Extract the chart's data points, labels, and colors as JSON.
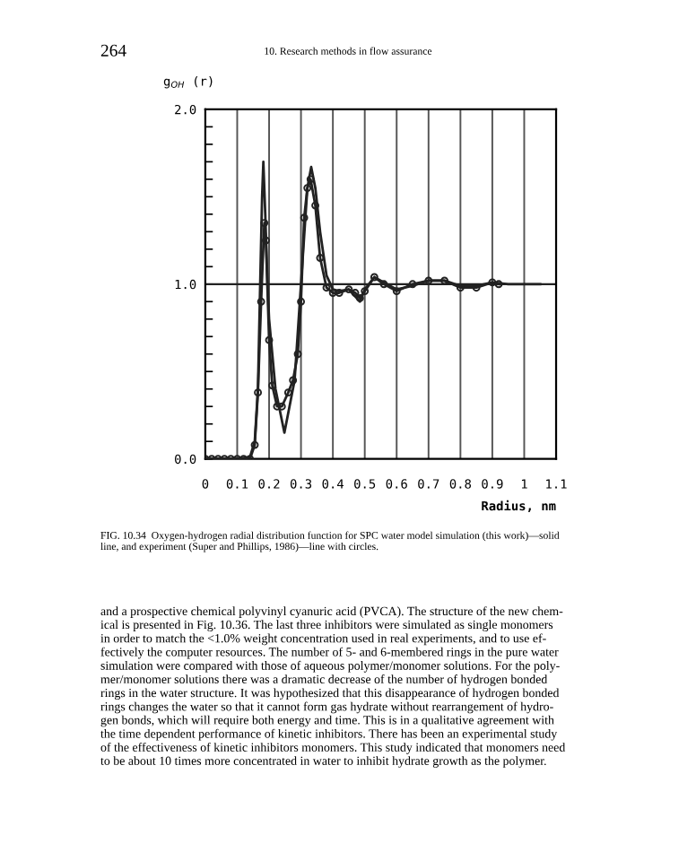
{
  "chart_data": {
    "type": "line",
    "annotations": [
      "264",
      "10. Research methods in flow assurance",
      "FIG. 10.34  Oxygen-hydrogen radial distribution function for SPC water model simulation (this work)—solid\nline, and experiment (Super and Phillips, 1986)—line with circles.",
      "and a prospective chemical polyvinyl cyanuric acid (PVCA). The structure of the new chem-\nical is presented in Fig. 10.36. The last three inhibitors were simulated as single monomers\nin order to match the <1.0% weight concentration used in real experiments, and to use ef-\nfectively the computer resources. The number of 5- and 6-membered rings in the pure water\nsimulation were compared with those of aqueous polymer/monomer solutions. For the poly-\nmer/monomer solutions there was a dramatic decrease of the number of hydrogen bonded\nrings in the water structure. It was hypothesized that this disappearance of hydrogen bonded\nrings changes the water so that it cannot form gas hydrate without rearrangement of hydro-\ngen bonds, which will require both energy and time. This is in a qualitative agreement with\nthe time dependent performance of kinetic inhibitors. There has been an experimental study\nof the effectiveness of kinetic inhibitors monomers. This study indicated that monomers need\nto be about 10 times more concentrated in water to inhibit hydrate growth as the polymer."
    ],
    "xlabel": "Radius, nm",
    "ylabel": "g$_{OH}$ (r)",
    "series": [
      {
        "color": "#222222",
        "marker": "none",
        "x": [
          0,
          0.1,
          0.14,
          0.155,
          0.165,
          0.172,
          0.178,
          0.182,
          0.188,
          0.195,
          0.2,
          0.22,
          0.248,
          0.28,
          0.3,
          0.32,
          0.332,
          0.345,
          0.36,
          0.38,
          0.4,
          0.42,
          0.45,
          0.47,
          0.485,
          0.5,
          0.53,
          0.56,
          0.6,
          0.65,
          0.7,
          0.75,
          0.8,
          0.85,
          0.9,
          0.95,
          1.0,
          1.05
        ],
        "values": [
          0,
          0,
          0.01,
          0.1,
          0.4,
          1.0,
          1.5,
          1.7,
          1.4,
          1.0,
          0.8,
          0.4,
          0.15,
          0.45,
          1.0,
          1.55,
          1.67,
          1.55,
          1.3,
          1.05,
          0.97,
          0.96,
          0.97,
          0.93,
          0.9,
          0.97,
          1.04,
          1.01,
          0.97,
          0.99,
          1.02,
          1.02,
          0.99,
          0.99,
          1.01,
          1.0,
          1.0,
          1.0
        ]
      },
      {
        "color": "#222222",
        "marker": "circle",
        "x": [
          0,
          0.02,
          0.04,
          0.06,
          0.08,
          0.1,
          0.12,
          0.14,
          0.155,
          0.165,
          0.175,
          0.185,
          0.19,
          0.2,
          0.21,
          0.225,
          0.24,
          0.26,
          0.275,
          0.29,
          0.3,
          0.31,
          0.32,
          0.33,
          0.345,
          0.36,
          0.38,
          0.4,
          0.42,
          0.45,
          0.47,
          0.485,
          0.5,
          0.53,
          0.56,
          0.6,
          0.65,
          0.7,
          0.75,
          0.8,
          0.85,
          0.9,
          0.92
        ],
        "values": [
          0,
          0,
          0,
          0,
          0,
          0,
          0,
          0,
          0.08,
          0.38,
          0.9,
          1.35,
          1.25,
          0.68,
          0.42,
          0.3,
          0.3,
          0.38,
          0.45,
          0.6,
          0.9,
          1.38,
          1.55,
          1.6,
          1.45,
          1.15,
          0.98,
          0.95,
          0.95,
          0.97,
          0.95,
          0.92,
          0.96,
          1.04,
          1.0,
          0.96,
          1.0,
          1.02,
          1.02,
          0.98,
          0.98,
          1.01,
          1.0
        ]
      }
    ],
    "xlim": [
      0,
      1.1
    ],
    "ylim": [
      0,
      2
    ],
    "xticks": [
      {
        "value": 0,
        "label": "0"
      },
      0.1,
      0.2,
      0.3,
      0.4,
      0.5,
      0.6,
      0.7,
      0.8,
      0.9,
      {
        "value": 1,
        "label": "1"
      },
      1.1
    ],
    "yticks": [
      {
        "value": 0,
        "label": "0.0"
      },
      {
        "value": 0.1,
        "label": null
      },
      {
        "value": 0.2,
        "label": null
      },
      {
        "value": 0.3,
        "label": null
      },
      {
        "value": 0.4,
        "label": null
      },
      {
        "value": 0.5,
        "label": null
      },
      {
        "value": 0.6,
        "label": null
      },
      {
        "value": 0.7,
        "label": null
      },
      {
        "value": 0.8,
        "label": null
      },
      {
        "value": 0.9,
        "label": null
      },
      {
        "value": 1,
        "label": "1.0"
      },
      {
        "value": 1.1,
        "label": null
      },
      {
        "value": 1.2,
        "label": null
      },
      {
        "value": 1.3,
        "label": null
      },
      {
        "value": 1.4,
        "label": null
      },
      {
        "value": 1.5,
        "label": null
      },
      {
        "value": 1.6,
        "label": null
      },
      {
        "value": 1.7,
        "label": null
      },
      {
        "value": 1.8,
        "label": null
      },
      {
        "value": 1.9,
        "label": null
      },
      {
        "value": 2,
        "label": "2.0"
      }
    ],
    "grid": "x",
    "ref_lines": [
      {
        "axis": "y",
        "value": 1,
        "color": "#222222"
      }
    ],
    "legend": false
  }
}
